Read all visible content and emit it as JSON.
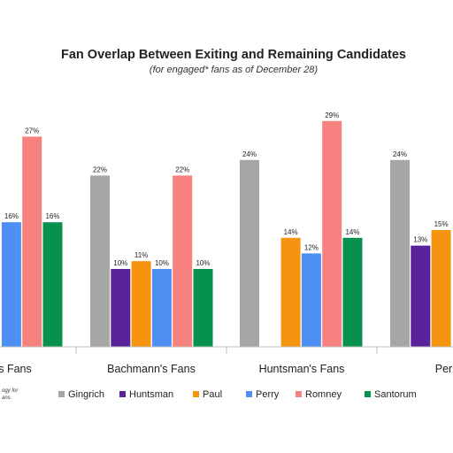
{
  "chart_data": {
    "type": "bar",
    "title": "Fan Overlap Between Exiting and Remaining Candidates",
    "subtitle": "(for engaged* fans as of December 28)",
    "categories": [
      "s Fans",
      "Bachmann's Fans",
      "Huntsman's Fans",
      "Perry's"
    ],
    "series": [
      {
        "name": "Gingrich",
        "color": "#a6a6a6",
        "values": [
          null,
          22,
          24,
          24
        ],
        "labels": [
          "",
          "22%",
          "24%",
          "24%"
        ]
      },
      {
        "name": "Huntsman",
        "color": "#59219a",
        "values": [
          null,
          10,
          null,
          13
        ],
        "labels": [
          "",
          "10%",
          "",
          "13%"
        ]
      },
      {
        "name": "Paul",
        "color": "#f6940f",
        "values": [
          null,
          11,
          14,
          15
        ],
        "labels": [
          "",
          "11%",
          "14%",
          "15%"
        ]
      },
      {
        "name": "Perry",
        "color": "#4d8ff3",
        "values": [
          16,
          10,
          12,
          null
        ],
        "labels": [
          "16%",
          "10%",
          "12%",
          ""
        ]
      },
      {
        "name": "Romney",
        "color": "#f7817e",
        "values": [
          27,
          22,
          29,
          null
        ],
        "labels": [
          "27%",
          "22%",
          "29%",
          ""
        ]
      },
      {
        "name": "Santorum",
        "color": "#06914f",
        "values": [
          16,
          10,
          14,
          null
        ],
        "labels": [
          "16%",
          "10%",
          "14%",
          ""
        ]
      }
    ],
    "legend_position": "bottom",
    "grid": false,
    "ylim": [
      0,
      34
    ]
  },
  "footnote": {
    "line1": "ogy for",
    "line2": "ans."
  }
}
